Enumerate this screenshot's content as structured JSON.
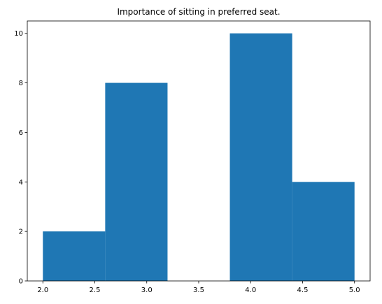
{
  "chart_data": {
    "type": "bar",
    "title": "Importance of sitting in preferred seat.",
    "xlabel": "",
    "ylabel": "",
    "xlim": [
      1.85,
      5.15
    ],
    "ylim": [
      0,
      10.5
    ],
    "bins": [
      {
        "x0": 2.0,
        "x1": 2.6,
        "value": 2
      },
      {
        "x0": 2.6,
        "x1": 3.2,
        "value": 8
      },
      {
        "x0": 3.2,
        "x1": 3.8,
        "value": 0
      },
      {
        "x0": 3.8,
        "x1": 4.4,
        "value": 10
      },
      {
        "x0": 4.4,
        "x1": 5.0,
        "value": 4
      }
    ],
    "x_ticks": [
      {
        "value": 2.0,
        "label": "2.0"
      },
      {
        "value": 2.5,
        "label": "2.5"
      },
      {
        "value": 3.0,
        "label": "3.0"
      },
      {
        "value": 3.5,
        "label": "3.5"
      },
      {
        "value": 4.0,
        "label": "4.0"
      },
      {
        "value": 4.5,
        "label": "4.5"
      },
      {
        "value": 5.0,
        "label": "5.0"
      }
    ],
    "y_ticks": [
      {
        "value": 0,
        "label": "0"
      },
      {
        "value": 2,
        "label": "2"
      },
      {
        "value": 4,
        "label": "4"
      },
      {
        "value": 6,
        "label": "6"
      },
      {
        "value": 8,
        "label": "8"
      },
      {
        "value": 10,
        "label": "10"
      }
    ],
    "bar_color": "#1f77b4",
    "grid": false,
    "legend": "none"
  }
}
